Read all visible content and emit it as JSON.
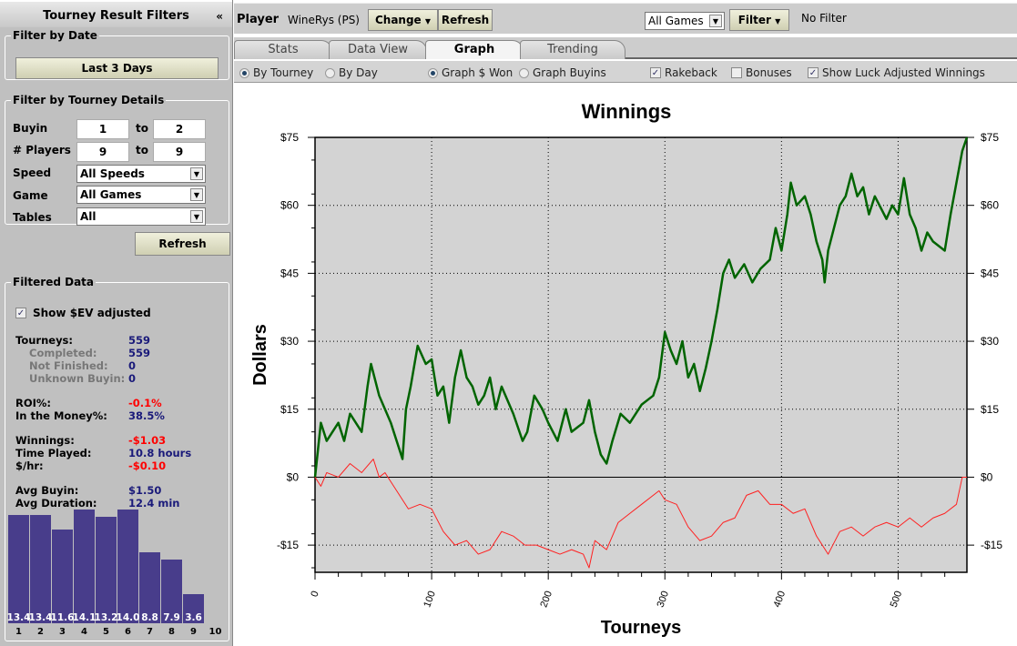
{
  "sidebar": {
    "title": "Tourney Result Filters",
    "collapse_icon": "«",
    "date_legend": "Filter by Date",
    "date_button": "Last 3 Days",
    "details_legend": "Filter by Tourney Details",
    "buyin_label": "Buyin",
    "buyin_from": "1",
    "buyin_to": "2",
    "to": "to",
    "players_label": "# Players",
    "players_from": "9",
    "players_to": "9",
    "speed_label": "Speed",
    "speed_value": "All Speeds",
    "game_label": "Game",
    "game_value": "All Games",
    "tables_label": "Tables",
    "tables_value": "All",
    "refresh": "Refresh",
    "data_legend": "Filtered Data",
    "ev_label": "Show $EV adjusted",
    "ev_checked": true,
    "stats": [
      {
        "label": "Tourneys:",
        "value": "559",
        "lc": "k",
        "vc": "v",
        "indent": false
      },
      {
        "label": "Completed:",
        "value": "559",
        "lc": "g",
        "vc": "v",
        "indent": true
      },
      {
        "label": "Not Finished:",
        "value": "0",
        "lc": "g",
        "vc": "v",
        "indent": true
      },
      {
        "label": "Unknown Buyin:",
        "value": "0",
        "lc": "g",
        "vc": "v",
        "indent": true
      },
      {
        "label": "ROI%:",
        "value": "-0.1%",
        "lc": "k",
        "vc": "r",
        "indent": false,
        "gap": true
      },
      {
        "label": "In the Money%:",
        "value": "38.5%",
        "lc": "k",
        "vc": "v",
        "indent": false
      },
      {
        "label": "Winnings:",
        "value": "-$1.03",
        "lc": "k",
        "vc": "r",
        "indent": false,
        "gap": true
      },
      {
        "label": "Time Played:",
        "value": "10.8 hours",
        "lc": "k",
        "vc": "v",
        "indent": false
      },
      {
        "label": "$/hr:",
        "value": "-$0.10",
        "lc": "k",
        "vc": "r",
        "indent": false
      },
      {
        "label": "Avg Buyin:",
        "value": "$1.50",
        "lc": "k",
        "vc": "v",
        "indent": false,
        "gap": true
      },
      {
        "label": "Avg Duration:",
        "value": "12.4 min",
        "lc": "k",
        "vc": "v",
        "indent": false
      }
    ],
    "finish_hist": {
      "positions": [
        "1",
        "2",
        "3",
        "4",
        "5",
        "6",
        "7",
        "8",
        "9",
        "10"
      ],
      "values": [
        13.4,
        13.4,
        11.6,
        14.1,
        13.2,
        14.0,
        8.8,
        7.9,
        3.6,
        null
      ],
      "labels": [
        "13.4",
        "13.4",
        "11.6",
        "14.1",
        "13.2",
        "14.0",
        "8.8",
        "7.9",
        "3.6",
        ""
      ],
      "color": "#483d8b"
    }
  },
  "toolbar": {
    "player_label": "Player",
    "player_name": "WineRys (PS)",
    "change": "Change",
    "refresh": "Refresh",
    "games_value": "All Games",
    "filter": "Filter",
    "filter_status": "No Filter"
  },
  "tabs": [
    {
      "label": "Stats"
    },
    {
      "label": "Data View"
    },
    {
      "label": "Graph",
      "active": true
    },
    {
      "label": "Trending"
    }
  ],
  "options": {
    "by_tourney": "By Tourney",
    "by_day": "By Day",
    "graph_won": "Graph $ Won",
    "graph_buyins": "Graph Buyins",
    "rakeback": "Rakeback",
    "bonuses": "Bonuses",
    "luck": "Show Luck Adjusted Winnings",
    "rakeback_checked": true,
    "bonuses_checked": false,
    "luck_checked": true
  },
  "chart_data": {
    "type": "line",
    "title": "Winnings",
    "xlabel": "Tourneys",
    "ylabel": "Dollars",
    "xlim": [
      0,
      559
    ],
    "ylim": [
      -21,
      75
    ],
    "xticks": [
      0,
      100,
      200,
      300,
      400,
      500
    ],
    "xtick_labels": [
      "0",
      "100",
      "200",
      "300",
      "400",
      "500"
    ],
    "yticks": [
      75,
      60,
      45,
      30,
      15,
      0,
      -15
    ],
    "ytick_labels": [
      "$75",
      "$60",
      "$45",
      "$30",
      "$15",
      "$0",
      "-$15"
    ],
    "grid": true,
    "series": [
      {
        "color": "#006400",
        "x": [
          0,
          5,
          10,
          20,
          25,
          30,
          40,
          45,
          48,
          55,
          60,
          65,
          70,
          75,
          78,
          82,
          88,
          95,
          100,
          105,
          110,
          115,
          120,
          125,
          130,
          135,
          140,
          145,
          150,
          155,
          160,
          170,
          178,
          182,
          188,
          195,
          200,
          208,
          215,
          220,
          230,
          235,
          240,
          245,
          250,
          255,
          262,
          270,
          280,
          290,
          295,
          300,
          305,
          310,
          315,
          320,
          325,
          330,
          335,
          340,
          345,
          350,
          355,
          360,
          368,
          375,
          382,
          390,
          395,
          400,
          405,
          408,
          413,
          420,
          425,
          430,
          435,
          437,
          440,
          445,
          450,
          455,
          460,
          465,
          470,
          475,
          480,
          490,
          495,
          500,
          505,
          510,
          515,
          520,
          525,
          530,
          535,
          540,
          545,
          550,
          555,
          559
        ],
        "y": [
          0,
          12,
          8,
          12,
          8,
          14,
          10,
          20,
          25,
          18,
          15,
          12,
          8,
          4,
          15,
          20,
          29,
          25,
          26,
          18,
          20,
          12,
          22,
          28,
          22,
          20,
          16,
          18,
          22,
          15,
          20,
          14,
          8,
          10,
          18,
          15,
          12,
          8,
          15,
          10,
          12,
          17,
          10,
          5,
          3,
          8,
          14,
          12,
          16,
          18,
          22,
          32,
          28,
          25,
          30,
          22,
          25,
          19,
          24,
          30,
          37,
          45,
          48,
          44,
          47,
          43,
          46,
          48,
          55,
          50,
          58,
          65,
          60,
          62,
          58,
          52,
          48,
          43,
          50,
          55,
          60,
          62,
          67,
          62,
          64,
          58,
          62,
          57,
          60,
          58,
          66,
          58,
          55,
          50,
          54,
          52,
          51,
          50,
          58,
          65,
          72,
          75
        ]
      },
      {
        "color": "#ff2020",
        "x": [
          0,
          5,
          10,
          20,
          30,
          40,
          50,
          55,
          60,
          70,
          80,
          90,
          100,
          110,
          120,
          130,
          140,
          150,
          160,
          170,
          180,
          190,
          200,
          210,
          220,
          230,
          235,
          240,
          250,
          260,
          270,
          280,
          290,
          295,
          300,
          310,
          320,
          330,
          340,
          350,
          360,
          370,
          380,
          390,
          400,
          410,
          420,
          430,
          440,
          450,
          460,
          470,
          480,
          490,
          500,
          510,
          520,
          530,
          540,
          550,
          555,
          559
        ],
        "y": [
          0,
          -2,
          1,
          0,
          3,
          1,
          4,
          0,
          1,
          -3,
          -7,
          -6,
          -7,
          -12,
          -15,
          -14,
          -17,
          -16,
          -12,
          -13,
          -15,
          -15,
          -16,
          -17,
          -16,
          -17,
          -20,
          -14,
          -16,
          -10,
          -8,
          -6,
          -4,
          -3,
          -5,
          -6,
          -11,
          -14,
          -13,
          -10,
          -9,
          -4,
          -3,
          -6,
          -6,
          -8,
          -7,
          -13,
          -17,
          -12,
          -11,
          -13,
          -11,
          -10,
          -11,
          -9,
          -11,
          -9,
          -8,
          -6,
          0,
          0
        ]
      }
    ]
  }
}
